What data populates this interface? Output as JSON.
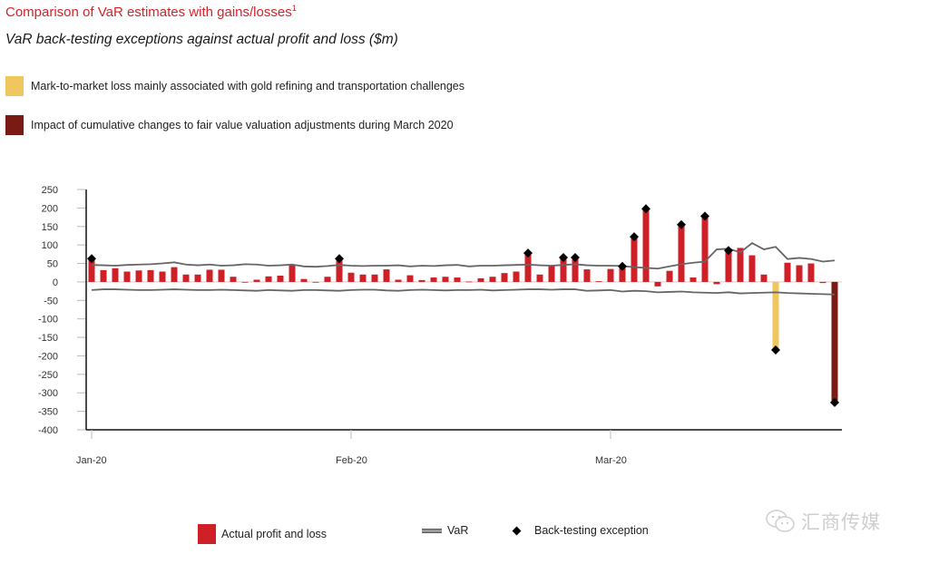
{
  "header": {
    "title": "Comparison of VaR estimates with gains/losses",
    "title_footnote": "1",
    "subtitle": "VaR back-testing exceptions against actual profit and loss ($m)"
  },
  "notes": [
    {
      "label": "Mark-to-market loss mainly associated with gold refining and transportation challenges",
      "color": "#f0c65e"
    },
    {
      "label": "Impact of cumulative changes to fair value valuation adjustments during March 2020",
      "color": "#7a1a14"
    }
  ],
  "legend": {
    "pnl": "Actual profit and loss",
    "var": "VaR",
    "exception": "Back-testing exception"
  },
  "watermark": {
    "text": "汇商传媒",
    "icon": "wechat-icon"
  },
  "colors": {
    "pnl": "#cf2027",
    "gold": "#f0c65e",
    "fva": "#7a1a14",
    "var": "#666666",
    "axis": "#111111"
  },
  "chart_data": {
    "type": "bar",
    "title": "Comparison of VaR estimates with gains/losses",
    "subtitle": "VaR back-testing exceptions against actual profit and loss ($m)",
    "xlabel": "",
    "ylabel": "$m",
    "ylim": [
      -400,
      250
    ],
    "yticks": [
      250,
      200,
      150,
      100,
      50,
      0,
      -50,
      -100,
      -150,
      -200,
      -250,
      -300,
      -350,
      -400
    ],
    "xticks": [
      {
        "index": 0,
        "label": "Jan-20"
      },
      {
        "index": 22,
        "label": "Feb-20"
      },
      {
        "index": 44,
        "label": "Mar-20"
      }
    ],
    "grid": false,
    "legend_position": "bottom",
    "series": [
      {
        "name": "Actual profit and loss",
        "kind": "bar",
        "values": [
          63,
          32,
          37,
          28,
          31,
          32,
          28,
          40,
          20,
          20,
          33,
          33,
          14,
          0,
          6,
          15,
          17,
          45,
          8,
          0,
          14,
          63,
          25,
          20,
          20,
          34,
          6,
          18,
          5,
          12,
          14,
          12,
          1,
          10,
          14,
          24,
          28,
          78,
          20,
          43,
          66,
          66,
          34,
          2,
          35,
          42,
          122,
          198,
          -12,
          30,
          155,
          12,
          178,
          -6,
          85,
          92,
          72,
          20,
          -184,
          52,
          45,
          50,
          -3,
          -326
        ],
        "special": [
          {
            "index": 58,
            "category": "Mark-to-market loss (gold refining and transportation)"
          },
          {
            "index": 63,
            "category": "Fair value valuation adjustments, March 2020"
          }
        ]
      },
      {
        "name": "VaR",
        "kind": "line",
        "upper": [
          46,
          45,
          44,
          46,
          47,
          48,
          50,
          53,
          47,
          45,
          47,
          44,
          45,
          48,
          47,
          44,
          45,
          47,
          42,
          41,
          43,
          46,
          44,
          43,
          44,
          44,
          45,
          42,
          44,
          43,
          45,
          46,
          42,
          44,
          44,
          45,
          46,
          47,
          45,
          44,
          46,
          48,
          45,
          44,
          44,
          43,
          40,
          38,
          36,
          42,
          48,
          52,
          55,
          88,
          90,
          80,
          105,
          88,
          95,
          62,
          65,
          62,
          55,
          58
        ],
        "lower": [
          -22,
          -20,
          -20,
          -21,
          -22,
          -22,
          -21,
          -20,
          -21,
          -22,
          -22,
          -21,
          -22,
          -23,
          -24,
          -22,
          -23,
          -24,
          -22,
          -22,
          -23,
          -24,
          -22,
          -21,
          -21,
          -23,
          -24,
          -22,
          -21,
          -22,
          -23,
          -22,
          -22,
          -21,
          -23,
          -22,
          -21,
          -20,
          -20,
          -21,
          -20,
          -20,
          -24,
          -23,
          -22,
          -26,
          -24,
          -25,
          -28,
          -27,
          -26,
          -28,
          -29,
          -30,
          -28,
          -31,
          -30,
          -29,
          -28,
          -30,
          -31,
          -32,
          -33,
          -34
        ]
      },
      {
        "name": "Back-testing exception",
        "kind": "marker",
        "points": [
          {
            "index": 0,
            "value": 63
          },
          {
            "index": 21,
            "value": 63
          },
          {
            "index": 37,
            "value": 78
          },
          {
            "index": 40,
            "value": 66
          },
          {
            "index": 41,
            "value": 66
          },
          {
            "index": 45,
            "value": 42
          },
          {
            "index": 46,
            "value": 122
          },
          {
            "index": 47,
            "value": 198
          },
          {
            "index": 50,
            "value": 155
          },
          {
            "index": 52,
            "value": 178
          },
          {
            "index": 54,
            "value": 85
          },
          {
            "index": 58,
            "value": -184
          },
          {
            "index": 63,
            "value": -326
          }
        ]
      }
    ]
  }
}
